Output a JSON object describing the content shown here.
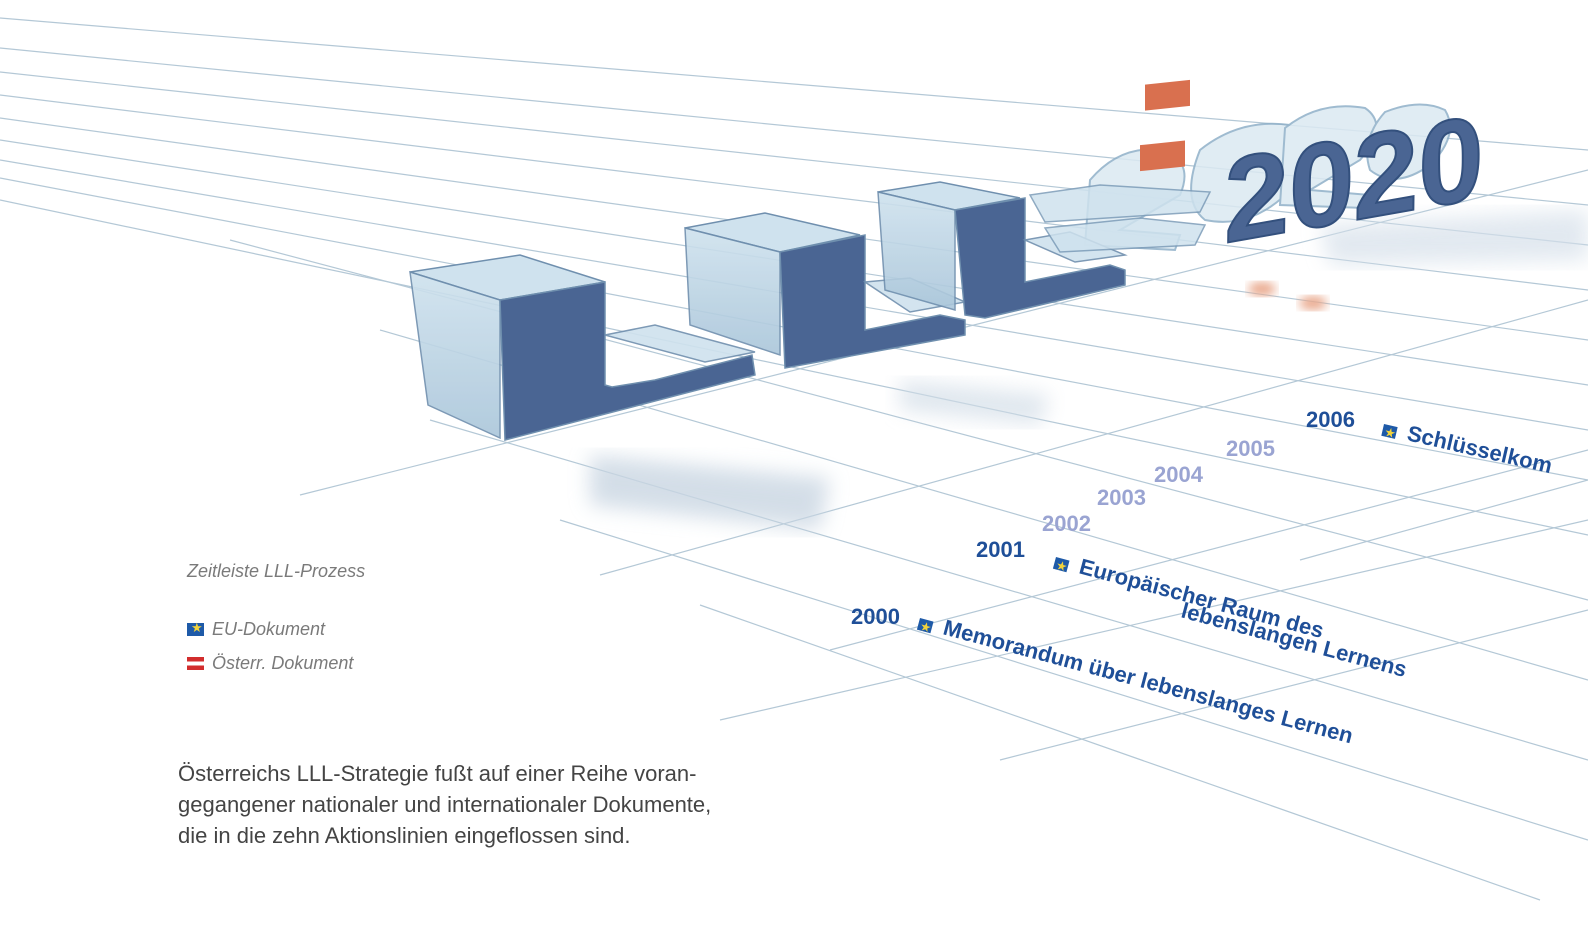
{
  "timeline": {
    "years": [
      {
        "year": "2000",
        "color": "#1f4f98",
        "title": [
          "Memorandum über lebenslanges Lernen"
        ],
        "doc": "eu"
      },
      {
        "year": "2001",
        "color": "#1f4f98",
        "title": [
          "Europäischer Raum des",
          "lebenslangen Lernens"
        ],
        "doc": "eu"
      },
      {
        "year": "2002",
        "color": "#9aa4d2",
        "title": [],
        "doc": ""
      },
      {
        "year": "2003",
        "color": "#9aa4d2",
        "title": [],
        "doc": ""
      },
      {
        "year": "2004",
        "color": "#9aa4d2",
        "title": [],
        "doc": ""
      },
      {
        "year": "2005",
        "color": "#9aa4d2",
        "title": [],
        "doc": ""
      },
      {
        "year": "2006",
        "color": "#1f4f98",
        "title": [
          "Schlüsselkom"
        ],
        "doc": "eu"
      }
    ]
  },
  "headline_3d": {
    "letters": "LLL",
    "number": "2020"
  },
  "caption": "Zeitleiste LLL-Prozess",
  "legend": {
    "eu_label": "EU-Dokument",
    "at_label": "Österr. Dokument",
    "eu_icon": "eu-flag-icon",
    "at_icon": "austria-flag-icon"
  },
  "body_lines": [
    "Österreichs LLL-Strategie fußt auf einer Reihe voran-",
    "gegangener nationaler und internationaler Dokumente,",
    "die in die zehn Aktionslinien eingeflossen sind."
  ],
  "colors": {
    "dark_blue": "#4a6593",
    "glass_blue": "#b9d4e3",
    "accent_red": "#d9704f",
    "grid_line": "#b4c8d6",
    "year_dim": "#9aa4d2",
    "year_strong": "#1f4f98"
  }
}
